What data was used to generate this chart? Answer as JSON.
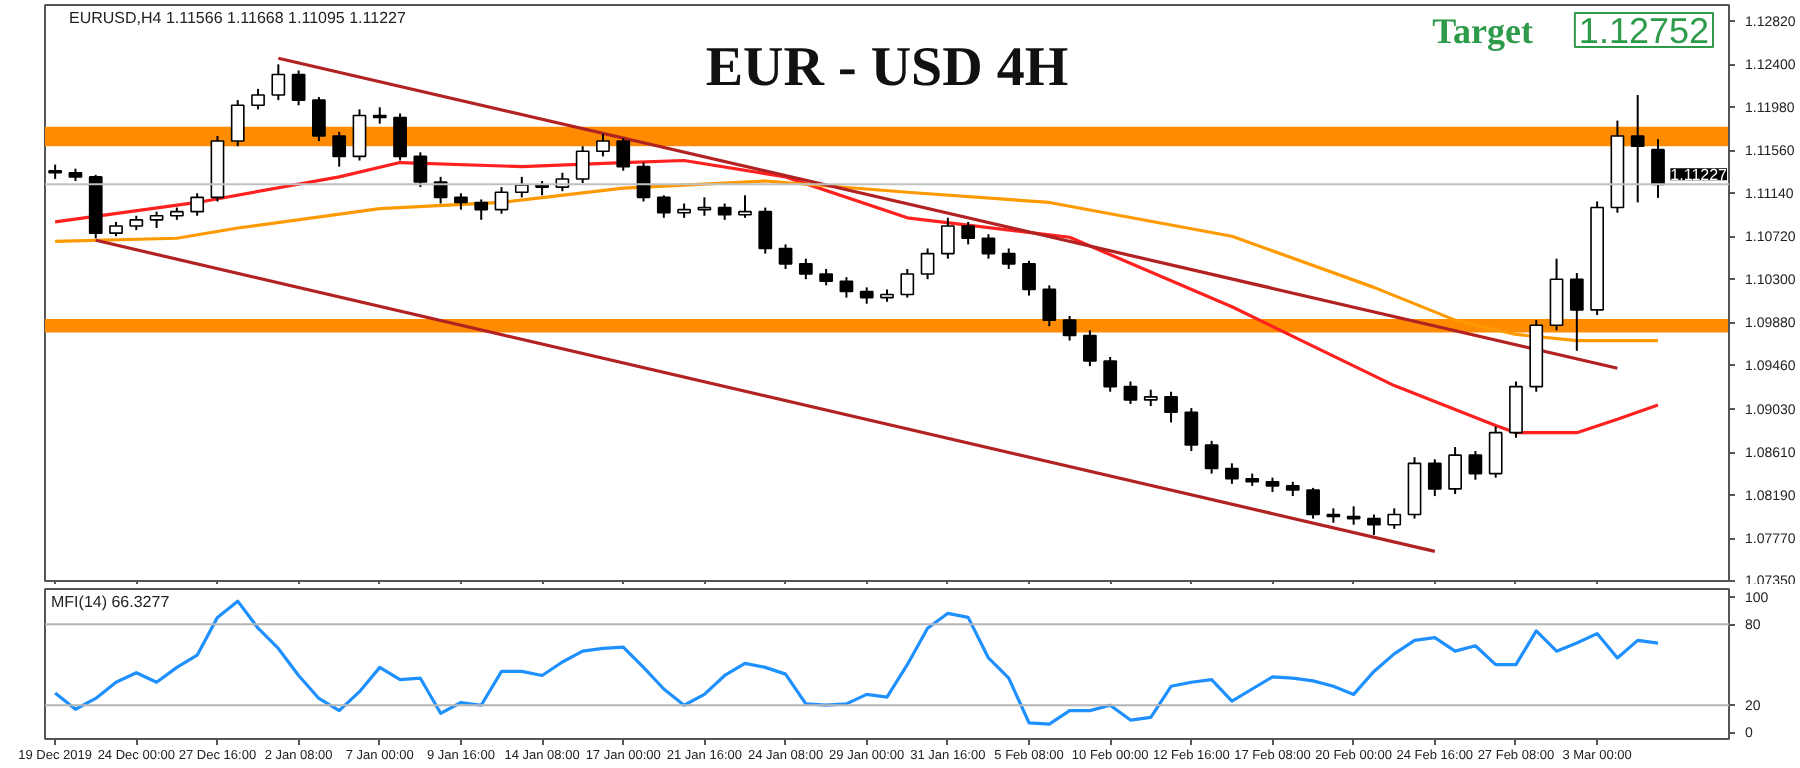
{
  "chart_data": [
    {
      "type": "candlestick",
      "title": "EUR - USD 4H",
      "subtitle": "EURUSD,H4 1.11566 1.11668 1.11095 1.11227",
      "annotations": [
        "Target",
        "1.12752"
      ],
      "ohlc": [
        [
          1.1136,
          1.1142,
          1.1128,
          1.1134
        ],
        [
          1.1134,
          1.1138,
          1.1126,
          1.113
        ],
        [
          1.113,
          1.1132,
          1.107,
          1.1075
        ],
        [
          1.1075,
          1.1086,
          1.1072,
          1.1082
        ],
        [
          1.1082,
          1.1092,
          1.1078,
          1.1088
        ],
        [
          1.1088,
          1.1096,
          1.108,
          1.1092
        ],
        [
          1.1092,
          1.11,
          1.1088,
          1.1096
        ],
        [
          1.1096,
          1.1114,
          1.1092,
          1.111
        ],
        [
          1.111,
          1.117,
          1.1106,
          1.1165
        ],
        [
          1.1165,
          1.1205,
          1.116,
          1.12
        ],
        [
          1.12,
          1.1216,
          1.1196,
          1.121
        ],
        [
          1.121,
          1.124,
          1.1205,
          1.123
        ],
        [
          1.123,
          1.1234,
          1.12,
          1.1205
        ],
        [
          1.1205,
          1.1208,
          1.1165,
          1.117
        ],
        [
          1.117,
          1.1174,
          1.114,
          1.115
        ],
        [
          1.115,
          1.1196,
          1.1146,
          1.119
        ],
        [
          1.119,
          1.1198,
          1.1182,
          1.1188
        ],
        [
          1.1188,
          1.1192,
          1.1146,
          1.115
        ],
        [
          1.115,
          1.1154,
          1.112,
          1.1125
        ],
        [
          1.1125,
          1.113,
          1.1104,
          1.111
        ],
        [
          1.111,
          1.1114,
          1.1098,
          1.1105
        ],
        [
          1.1105,
          1.1108,
          1.1088,
          1.1098
        ],
        [
          1.1098,
          1.112,
          1.1094,
          1.1115
        ],
        [
          1.1115,
          1.113,
          1.111,
          1.1122
        ],
        [
          1.1122,
          1.1126,
          1.1112,
          1.112
        ],
        [
          1.112,
          1.1134,
          1.1116,
          1.1128
        ],
        [
          1.1128,
          1.116,
          1.1124,
          1.1155
        ],
        [
          1.1155,
          1.1172,
          1.115,
          1.1165
        ],
        [
          1.1165,
          1.1168,
          1.1136,
          1.114
        ],
        [
          1.114,
          1.1144,
          1.1106,
          1.111
        ],
        [
          1.111,
          1.1112,
          1.109,
          1.1095
        ],
        [
          1.1095,
          1.1104,
          1.109,
          1.1098
        ],
        [
          1.1098,
          1.111,
          1.1092,
          1.11
        ],
        [
          1.11,
          1.1104,
          1.1088,
          1.1093
        ],
        [
          1.1093,
          1.1112,
          1.109,
          1.1096
        ],
        [
          1.1096,
          1.11,
          1.1055,
          1.106
        ],
        [
          1.106,
          1.1064,
          1.104,
          1.1045
        ],
        [
          1.1045,
          1.105,
          1.103,
          1.1035
        ],
        [
          1.1035,
          1.104,
          1.1024,
          1.1028
        ],
        [
          1.1028,
          1.1032,
          1.1012,
          1.1018
        ],
        [
          1.1018,
          1.1022,
          1.1006,
          1.1012
        ],
        [
          1.1012,
          1.102,
          1.1008,
          1.1015
        ],
        [
          1.1015,
          1.104,
          1.1012,
          1.1035
        ],
        [
          1.1035,
          1.106,
          1.103,
          1.1055
        ],
        [
          1.1055,
          1.109,
          1.105,
          1.1082
        ],
        [
          1.1082,
          1.1086,
          1.1064,
          1.107
        ],
        [
          1.107,
          1.1074,
          1.105,
          1.1055
        ],
        [
          1.1055,
          1.106,
          1.104,
          1.1045
        ],
        [
          1.1045,
          1.1048,
          1.1014,
          1.102
        ],
        [
          1.102,
          1.1024,
          1.0984,
          1.099
        ],
        [
          1.099,
          1.0994,
          1.097,
          1.0975
        ],
        [
          1.0975,
          1.098,
          1.0945,
          1.095
        ],
        [
          1.095,
          1.0954,
          1.092,
          1.0925
        ],
        [
          1.0925,
          1.093,
          1.0908,
          1.0912
        ],
        [
          1.0912,
          1.0922,
          1.0906,
          1.0915
        ],
        [
          1.0915,
          1.092,
          1.089,
          1.09
        ],
        [
          1.09,
          1.0904,
          1.0862,
          1.0868
        ],
        [
          1.0868,
          1.0872,
          1.084,
          1.0845
        ],
        [
          1.0845,
          1.085,
          1.083,
          1.0835
        ],
        [
          1.0835,
          1.084,
          1.0828,
          1.0832
        ],
        [
          1.0832,
          1.0836,
          1.0822,
          1.0828
        ],
        [
          1.0828,
          1.0832,
          1.0818,
          1.0824
        ],
        [
          1.0824,
          1.0826,
          1.0796,
          1.08
        ],
        [
          1.08,
          1.0806,
          1.0792,
          1.0798
        ],
        [
          1.0798,
          1.0808,
          1.079,
          1.0796
        ],
        [
          1.0796,
          1.08,
          1.078,
          1.079
        ],
        [
          1.079,
          1.0806,
          1.0786,
          1.08
        ],
        [
          1.08,
          1.0856,
          1.0796,
          1.085
        ],
        [
          1.085,
          1.0854,
          1.0818,
          1.0825
        ],
        [
          1.0825,
          1.0866,
          1.082,
          1.0858
        ],
        [
          1.0858,
          1.0862,
          1.0834,
          1.084
        ],
        [
          1.084,
          1.0886,
          1.0836,
          1.088
        ],
        [
          1.088,
          1.093,
          1.0875,
          1.0925
        ],
        [
          1.0925,
          1.099,
          1.092,
          1.0985
        ],
        [
          1.0985,
          1.105,
          1.098,
          1.103
        ],
        [
          1.103,
          1.1036,
          1.096,
          1.1
        ],
        [
          1.1,
          1.1106,
          1.0995,
          1.11
        ],
        [
          1.11,
          1.1185,
          1.1095,
          1.117
        ],
        [
          1.117,
          1.121,
          1.1105,
          1.116
        ],
        [
          1.11566,
          1.11668,
          1.11095,
          1.11227
        ]
      ],
      "series": [
        {
          "type": "line",
          "color": "#ff2020",
          "values": [
            1.1086,
            null,
            null,
            null,
            null,
            null,
            null,
            1.1105,
            null,
            null,
            null,
            null,
            null,
            null,
            1.113,
            null,
            null,
            1.1144,
            null,
            null,
            null,
            null,
            null,
            1.114,
            null,
            null,
            null,
            null,
            1.1144,
            null,
            null,
            1.1146,
            null,
            null,
            null,
            null,
            1.113,
            null,
            null,
            null,
            null,
            null,
            1.109,
            null,
            null,
            null,
            null,
            null,
            null,
            null,
            1.1071,
            null,
            null,
            null,
            null,
            null,
            null,
            null,
            1.1003,
            null,
            null,
            null,
            null,
            null,
            null,
            null,
            1.0926,
            null,
            null,
            null,
            null,
            1.0887,
            1.088,
            null,
            null,
            1.088,
            null,
            1.0893,
            null,
            1.0907
          ]
        },
        {
          "type": "line",
          "color": "#ff9900",
          "values": [
            1.1067,
            null,
            null,
            null,
            null,
            null,
            1.107,
            null,
            null,
            1.108,
            null,
            null,
            null,
            null,
            null,
            null,
            1.1099,
            null,
            null,
            null,
            null,
            null,
            1.1105,
            null,
            null,
            null,
            null,
            null,
            1.1119,
            null,
            null,
            null,
            null,
            null,
            null,
            1.1126,
            null,
            null,
            null,
            null,
            null,
            null,
            1.1115,
            null,
            null,
            null,
            null,
            null,
            null,
            1.1105,
            null,
            null,
            null,
            null,
            null,
            null,
            null,
            null,
            1.1072,
            null,
            null,
            null,
            null,
            null,
            null,
            1.1022,
            null,
            null,
            null,
            1.099,
            null,
            null,
            1.0976,
            null,
            null,
            1.097,
            null,
            null,
            null,
            1.097
          ]
        },
        {
          "type": "line",
          "color": "#b22222",
          "values": [
            null,
            null,
            null,
            null,
            null,
            null,
            null,
            null,
            null,
            null,
            null,
            1.1246,
            null,
            null,
            null,
            null,
            null,
            null,
            null,
            null,
            null,
            null,
            null,
            null,
            null,
            null,
            null,
            null,
            null,
            null,
            null,
            null,
            null,
            null,
            null,
            null,
            null,
            null,
            null,
            null,
            null,
            null,
            null,
            null,
            null,
            null,
            null,
            null,
            null,
            null,
            null,
            null,
            null,
            null,
            null,
            null,
            null,
            null,
            null,
            null,
            null,
            null,
            null,
            null,
            null,
            null,
            null,
            null,
            null,
            null,
            null,
            null,
            null,
            null,
            null,
            null,
            null,
            1.0943,
            null,
            null
          ]
        },
        {
          "type": "line",
          "color": "#b22222",
          "values": [
            null,
            null,
            1.1068,
            null,
            null,
            null,
            null,
            null,
            null,
            null,
            null,
            null,
            null,
            null,
            null,
            null,
            null,
            null,
            null,
            null,
            null,
            null,
            null,
            null,
            null,
            null,
            null,
            null,
            null,
            null,
            null,
            null,
            null,
            null,
            null,
            null,
            null,
            null,
            null,
            null,
            null,
            null,
            null,
            null,
            null,
            null,
            null,
            null,
            null,
            null,
            null,
            null,
            null,
            null,
            null,
            null,
            null,
            null,
            null,
            null,
            null,
            null,
            null,
            null,
            null,
            null,
            null,
            null,
            1.0764,
            null,
            null,
            null,
            null,
            null,
            null,
            null,
            null,
            null,
            null,
            null
          ]
        }
      ],
      "bands": [
        {
          "axis": "y",
          "from": 1.116,
          "to": 1.1179,
          "color": "#ff8c00"
        },
        {
          "axis": "y",
          "from": 1.0978,
          "to": 1.0991,
          "color": "#ff8c00"
        }
      ],
      "ref_lines": [
        {
          "axis": "y",
          "value": 1.11227,
          "label": "1.11227",
          "color": "#c0c0c0"
        }
      ],
      "ylim": [
        1.0735,
        1.1298
      ],
      "yticks": [
        {
          "value": 1.0735,
          "label": "1.07350"
        },
        {
          "value": 1.0777,
          "label": "1.07770"
        },
        {
          "value": 1.0819,
          "label": "1.08190"
        },
        {
          "value": 1.0861,
          "label": "1.08610"
        },
        {
          "value": 1.0903,
          "label": "1.09030"
        },
        {
          "value": 1.0946,
          "label": "1.09460"
        },
        {
          "value": 1.0988,
          "label": "1.09880"
        },
        {
          "value": 1.103,
          "label": "1.10300"
        },
        {
          "value": 1.1072,
          "label": "1.10720"
        },
        {
          "value": 1.1114,
          "label": "1.11140"
        },
        {
          "value": 1.1156,
          "label": "1.11560"
        },
        {
          "value": 1.1198,
          "label": "1.11980"
        },
        {
          "value": 1.124,
          "label": "1.12400"
        },
        {
          "value": 1.1282,
          "label": "1.12820"
        }
      ],
      "tick_labels": "y"
    },
    {
      "type": "line",
      "title": "MFI(14) 66.3277",
      "categories": [
        "19 Dec 2019",
        null,
        null,
        null,
        "24 Dec 00:00",
        null,
        null,
        null,
        "27 Dec 16:00",
        null,
        null,
        null,
        "2 Jan 08:00",
        null,
        null,
        null,
        "7 Jan 00:00",
        null,
        null,
        null,
        "9 Jan 16:00",
        null,
        null,
        null,
        "14 Jan 08:00",
        null,
        null,
        null,
        "17 Jan 00:00",
        null,
        null,
        null,
        "21 Jan 16:00",
        null,
        null,
        null,
        "24 Jan 08:00",
        null,
        null,
        null,
        "29 Jan 00:00",
        null,
        null,
        null,
        "31 Jan 16:00",
        null,
        null,
        null,
        "5 Feb 08:00",
        null,
        null,
        null,
        "10 Feb 00:00",
        null,
        null,
        null,
        "12 Feb 16:00",
        null,
        null,
        null,
        "17 Feb 08:00",
        null,
        null,
        null,
        "20 Feb 00:00",
        null,
        null,
        null,
        "24 Feb 16:00",
        null,
        null,
        null,
        "27 Feb 08:00",
        null,
        null,
        null,
        "3 Mar 00:00",
        null,
        null,
        null
      ],
      "series": [
        {
          "color": "#1e90ff",
          "values": [
            29,
            17,
            25,
            37,
            44,
            37,
            48,
            57,
            85,
            97,
            77,
            62,
            42,
            25,
            16,
            30,
            48,
            39,
            40,
            14,
            22,
            20,
            45,
            45,
            42,
            52,
            60,
            62,
            63,
            48,
            32,
            20,
            28,
            42,
            51,
            48,
            43,
            21,
            20,
            21,
            28,
            26,
            50,
            77,
            88,
            85,
            55,
            40,
            7,
            6,
            16,
            16,
            20,
            9,
            11,
            34,
            37,
            39,
            23,
            32,
            41,
            40,
            38,
            34,
            28,
            45,
            58,
            68,
            70,
            60,
            64,
            50,
            50,
            75,
            60,
            66,
            73,
            55,
            68,
            66
          ]
        }
      ],
      "ref_lines": [
        {
          "axis": "y",
          "value": 20,
          "color": "#b4b4b4"
        },
        {
          "axis": "y",
          "value": 80,
          "color": "#b4b4b4"
        }
      ],
      "ylim": [
        -5,
        106
      ],
      "yticks": [
        0,
        20,
        80,
        100
      ]
    }
  ]
}
